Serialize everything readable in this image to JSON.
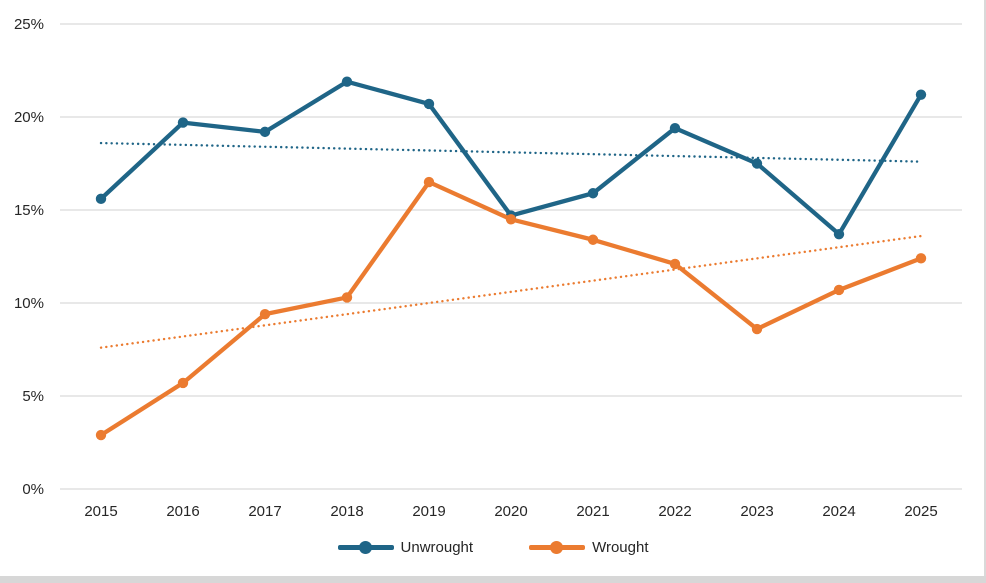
{
  "chart_data": {
    "type": "line",
    "categories": [
      "2015",
      "2016",
      "2017",
      "2018",
      "2019",
      "2020",
      "2021",
      "2022",
      "2023",
      "2024",
      "2025"
    ],
    "series": [
      {
        "name": "Unwrought",
        "color": "#1F6587",
        "values": [
          15.6,
          19.7,
          19.2,
          21.9,
          20.7,
          14.7,
          15.9,
          19.4,
          17.5,
          13.7,
          21.2
        ]
      },
      {
        "name": "Wrought",
        "color": "#EB7B30",
        "values": [
          2.9,
          5.7,
          9.4,
          10.3,
          16.5,
          14.5,
          13.4,
          12.1,
          8.6,
          10.7,
          12.4
        ]
      }
    ],
    "trendlines": [
      {
        "series": "Unwrought",
        "style": "dotted",
        "color": "#1F6587",
        "start": 18.6,
        "end": 17.6
      },
      {
        "series": "Wrought",
        "style": "dotted",
        "color": "#EB7B30",
        "start": 7.6,
        "end": 13.6
      }
    ],
    "ylim": [
      0,
      25
    ],
    "y_ticks": [
      "0%",
      "5%",
      "10%",
      "15%",
      "20%",
      "25%"
    ],
    "y_tick_values": [
      0,
      5,
      10,
      15,
      20,
      25
    ],
    "grid": true,
    "gridline_color": "#D9D9D9",
    "legend": [
      "Unwrought",
      "Wrought"
    ],
    "legend_position": "bottom",
    "xlabel": "",
    "ylabel": ""
  },
  "colors": {
    "background": "#FFFFFF",
    "tick_text": "#262626",
    "window_edge": "#D7D7D7"
  }
}
